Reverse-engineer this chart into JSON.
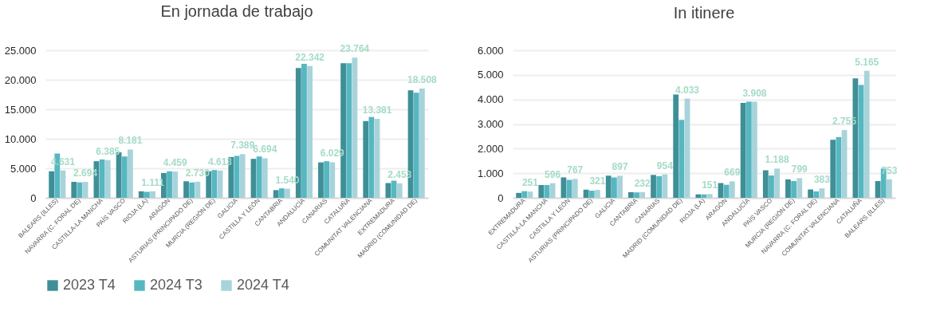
{
  "chart_data": [
    {
      "type": "bar",
      "title": "En jornada de trabajo",
      "categories": [
        "BALEARS (ILLES)",
        "NAVARRA (C. FORAL DE)",
        "CASTILLA-LA MANCHA",
        "PAÍS VASCO",
        "RIOJA (LA)",
        "ARAGÓN",
        "ASTURIAS (PRINCIPADO DE)",
        "MURCIA (REGIÓN DE)",
        "GALICIA",
        "CASTILLA Y LEÓN",
        "CANTABRIA",
        "ANDALUCÍA",
        "CANARIAS",
        "CATALUÑA",
        "COMUNITAT VALENCIANA",
        "EXTREMADURA",
        "MADRID (COMUNIDAD DE)"
      ],
      "ylim": [
        0,
        25000
      ],
      "yticks": [
        {
          "value": 0,
          "label": "0"
        },
        {
          "value": 5000,
          "label": "5.000"
        },
        {
          "value": 10000,
          "label": "10.000"
        },
        {
          "value": 15000,
          "label": "15.000"
        },
        {
          "value": 20000,
          "label": "20.000"
        },
        {
          "value": 25000,
          "label": "25.000"
        }
      ],
      "grid": "y",
      "legend": "bottom",
      "series": [
        {
          "name": "2023 T4",
          "color": "#3f8f97",
          "values": [
            4500,
            2700,
            6200,
            7700,
            1100,
            4200,
            2800,
            4500,
            6900,
            6600,
            1300,
            22000,
            6000,
            22800,
            13000,
            2500,
            18200
          ]
        },
        {
          "name": "2024 T3",
          "color": "#56b7c1",
          "values": [
            7500,
            2600,
            6500,
            7000,
            1000,
            4500,
            2600,
            4700,
            7100,
            7000,
            1600,
            22700,
            6200,
            22800,
            13700,
            2900,
            17800
          ]
        },
        {
          "name": "2024 T4",
          "color": "#a8d3da",
          "values": [
            4631,
            2694,
            6385,
            8181,
            1111,
            4459,
            2730,
            4613,
            7389,
            6694,
            1540,
            22342,
            6029,
            23764,
            13381,
            2453,
            18508
          ],
          "value_labels": [
            "4.631",
            "2.694",
            "6.385",
            "8.181",
            "1.111",
            "4.459",
            "2.730",
            "4.613",
            "7.389",
            "6.694",
            "1.540",
            "22.342",
            "6.029",
            "23.764",
            "13.381",
            "2.453",
            "18.508"
          ]
        }
      ]
    },
    {
      "type": "bar",
      "title": "In itinere",
      "categories": [
        "EXTREMADURA",
        "CASTILLA-LA MANCHA",
        "CASTILLA Y LEÓN",
        "ASTURIAS (PRINCIPADO DE)",
        "GALICIA",
        "CANTABRIA",
        "CANARIAS",
        "MADRID (COMUNIDAD DE)",
        "RIOJA (LA)",
        "ARAGÓN",
        "ANDALUCÍA",
        "PAÍS VASCO",
        "MURCIA (REGIÓN DE)",
        "NAVARRA (C. FORAL DE)",
        "COMUNITAT VALENCIANA",
        "CATALUÑA",
        "BALEARS (ILLES)"
      ],
      "ylim": [
        0,
        6000
      ],
      "yticks": [
        {
          "value": 0,
          "label": "0"
        },
        {
          "value": 1000,
          "label": "1.000"
        },
        {
          "value": 2000,
          "label": "2.000"
        },
        {
          "value": 3000,
          "label": "3.000"
        },
        {
          "value": 4000,
          "label": "4.000"
        },
        {
          "value": 5000,
          "label": "5.000"
        },
        {
          "value": 6000,
          "label": "6.000"
        }
      ],
      "grid": "y",
      "legend": "bottom",
      "series": [
        {
          "name": "2023 T4",
          "color": "#3f8f97",
          "values": [
            200,
            520,
            830,
            330,
            900,
            230,
            930,
            4200,
            140,
            600,
            3860,
            1120,
            750,
            340,
            2360,
            4860,
            680
          ]
        },
        {
          "name": "2024 T3",
          "color": "#56b7c1",
          "values": [
            270,
            520,
            730,
            290,
            830,
            220,
            880,
            3170,
            140,
            530,
            3910,
            910,
            680,
            260,
            2470,
            4590,
            1190
          ]
        },
        {
          "name": "2024 T4",
          "color": "#a8d3da",
          "values": [
            251,
            596,
            767,
            321,
            897,
            232,
            954,
            4033,
            151,
            669,
            3908,
            1188,
            799,
            383,
            2755,
            5165,
            753
          ],
          "value_labels": [
            "251",
            "596",
            "767",
            "321",
            "897",
            "232",
            "954",
            "4.033",
            "151",
            "669",
            "3.908",
            "1.188",
            "799",
            "383",
            "2.755",
            "5.165",
            "753"
          ]
        }
      ]
    }
  ]
}
